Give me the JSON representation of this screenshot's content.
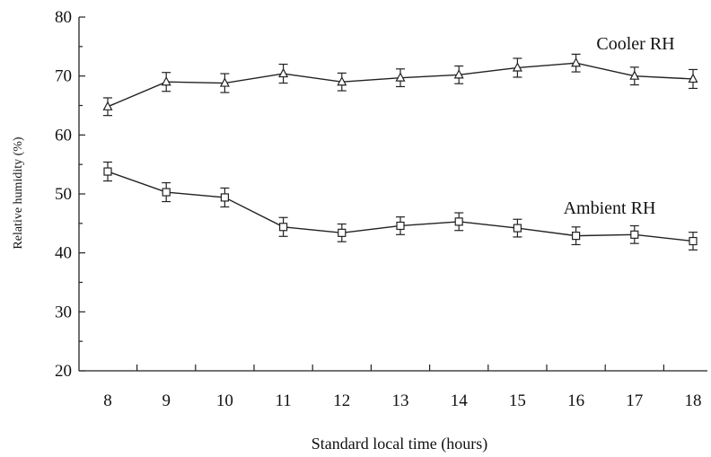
{
  "chart_data": {
    "type": "line",
    "xlabel": "Standard local time (hours)",
    "ylabel": "Relative humidity (%)",
    "x": [
      8,
      9,
      10,
      11,
      12,
      13,
      14,
      15,
      16,
      17,
      18
    ],
    "xticks": [
      8,
      9,
      10,
      11,
      12,
      13,
      14,
      15,
      16,
      17,
      18
    ],
    "yticks": [
      20,
      30,
      40,
      50,
      60,
      70,
      80
    ],
    "ylim": [
      20,
      80
    ],
    "grid": false,
    "legend": "none",
    "series": [
      {
        "name": "Cooler RH",
        "marker": "triangle",
        "values": [
          64.8,
          69.0,
          68.8,
          70.4,
          69.0,
          69.7,
          70.2,
          71.4,
          72.2,
          70.0,
          69.5
        ],
        "error": [
          1.5,
          1.6,
          1.6,
          1.6,
          1.5,
          1.5,
          1.5,
          1.6,
          1.5,
          1.5,
          1.6
        ]
      },
      {
        "name": "Ambient RH",
        "marker": "square",
        "values": [
          53.8,
          50.3,
          49.4,
          44.4,
          43.4,
          44.6,
          45.3,
          44.2,
          42.9,
          43.1,
          42.0
        ],
        "error": [
          1.6,
          1.6,
          1.6,
          1.6,
          1.5,
          1.5,
          1.5,
          1.5,
          1.5,
          1.5,
          1.5
        ]
      }
    ]
  }
}
